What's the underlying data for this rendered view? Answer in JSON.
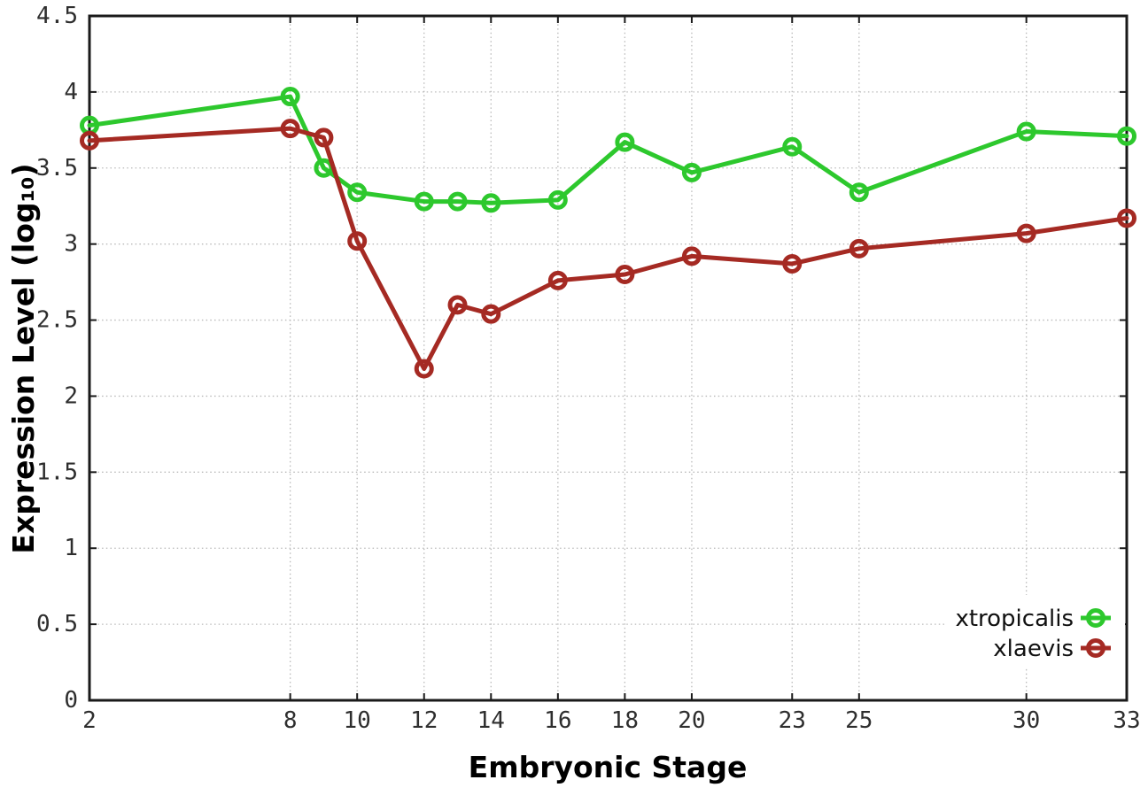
{
  "page": {
    "background": "#ffffff"
  },
  "chart_data": {
    "type": "line",
    "title": "",
    "xlabel": "Embryonic Stage",
    "ylabel": "Expression Level (log₁₀)",
    "xlim": [
      2,
      33
    ],
    "ylim": [
      0,
      4.5
    ],
    "grid": true,
    "legend_position": "bottom-right",
    "marker": "open-circle",
    "axis_color": "#1a1a1a",
    "grid_color": "#b9b9b9",
    "text_color": "#2e2e2e",
    "x_ticks": {
      "values": [
        2,
        8,
        10,
        12,
        14,
        16,
        18,
        20,
        23,
        25,
        30,
        33
      ],
      "labels": [
        "2",
        "8",
        "10",
        "12",
        "14",
        "16",
        "18",
        "20",
        "23",
        "25",
        "30",
        "33"
      ]
    },
    "y_ticks": {
      "values": [
        0,
        0.5,
        1,
        1.5,
        2,
        2.5,
        3,
        3.5,
        4,
        4.5
      ],
      "labels": [
        "0",
        "0.5",
        "1",
        "1.5",
        "2",
        "2.5",
        "3",
        "3.5",
        "4",
        "4.5"
      ]
    },
    "x": [
      2,
      8,
      9,
      10,
      12,
      13,
      14,
      16,
      18,
      20,
      23,
      25,
      30,
      33
    ],
    "series": [
      {
        "name": "xtropicalis",
        "color": "#2dc82d",
        "values": [
          3.78,
          3.97,
          3.5,
          3.34,
          3.28,
          3.28,
          3.27,
          3.29,
          3.67,
          3.47,
          3.64,
          3.34,
          3.74,
          3.71
        ]
      },
      {
        "name": "xlaevis",
        "color": "#a52a23",
        "values": [
          3.68,
          3.76,
          3.7,
          3.02,
          2.18,
          2.6,
          2.54,
          2.76,
          2.8,
          2.92,
          2.87,
          2.97,
          3.07,
          3.17
        ]
      }
    ]
  }
}
